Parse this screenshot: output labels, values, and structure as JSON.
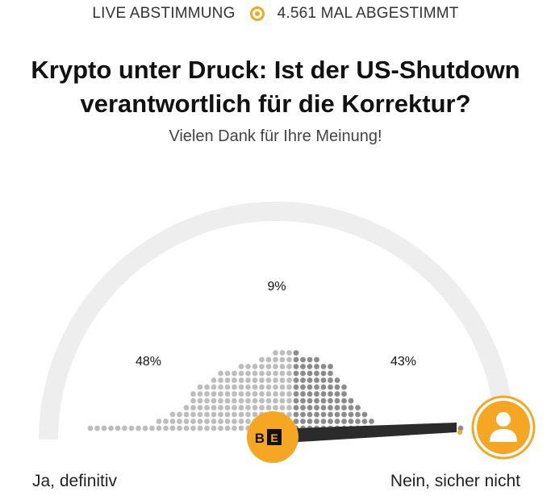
{
  "header": {
    "live_label": "LIVE ABSTIMMUNG",
    "vote_count_label": "4.561 MAL ABGESTIMMT"
  },
  "poll": {
    "question": "Krypto unter Druck: Ist der US-Shutdown verantwortlich für die Korrektur?",
    "thank_you": "Vielen Dank für Ihre Meinung!",
    "left_label": "Ja, definitiv",
    "right_label": "Nein, sicher nicht",
    "results": [
      {
        "percent_label": "48%",
        "value": 48
      },
      {
        "percent_label": "9%",
        "value": 9
      },
      {
        "percent_label": "43%",
        "value": 43
      }
    ],
    "brand_badge": "B|E",
    "user_position": 1.0
  },
  "colors": {
    "accent": "#f5a623",
    "track": "#eeeeee",
    "needle": "#2b2b2b",
    "dots_light": "#bdbdbd",
    "dots_dark": "#8c8c8c"
  },
  "icons": {
    "live_indicator": "live-dot-icon",
    "user": "user-avatar-icon",
    "brand": "brand-logo-icon"
  }
}
